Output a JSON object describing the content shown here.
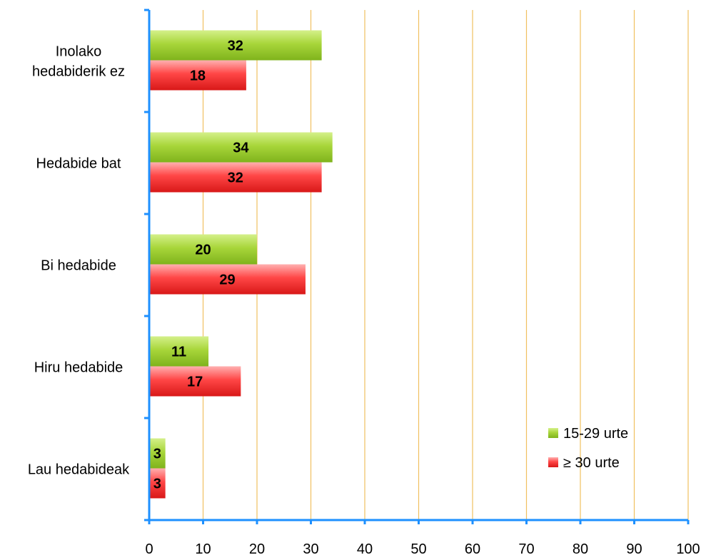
{
  "chart_data": {
    "type": "bar",
    "orientation": "horizontal",
    "title": "",
    "xlabel": "",
    "ylabel": "",
    "xlim": [
      0,
      100
    ],
    "x_ticks": [
      0,
      10,
      20,
      30,
      40,
      50,
      60,
      70,
      80,
      90,
      100
    ],
    "grid": "vertical",
    "legend_position": "bottom-right",
    "categories": [
      [
        "Inolako",
        "hedabiderik ez"
      ],
      [
        "Hedabide bat"
      ],
      [
        "Bi hedabide"
      ],
      [
        "Hiru hedabide"
      ],
      [
        "Lau hedabideak"
      ]
    ],
    "series": [
      {
        "name": "15-29 urte",
        "color": "#9acd32",
        "values": [
          32,
          34,
          20,
          11,
          3
        ]
      },
      {
        "name": "≥ 30 urte",
        "color": "#ff3b3b",
        "values": [
          18,
          32,
          29,
          17,
          3
        ]
      }
    ],
    "colors": {
      "axis": "#1e90ff",
      "grid": "#f0c060"
    }
  }
}
